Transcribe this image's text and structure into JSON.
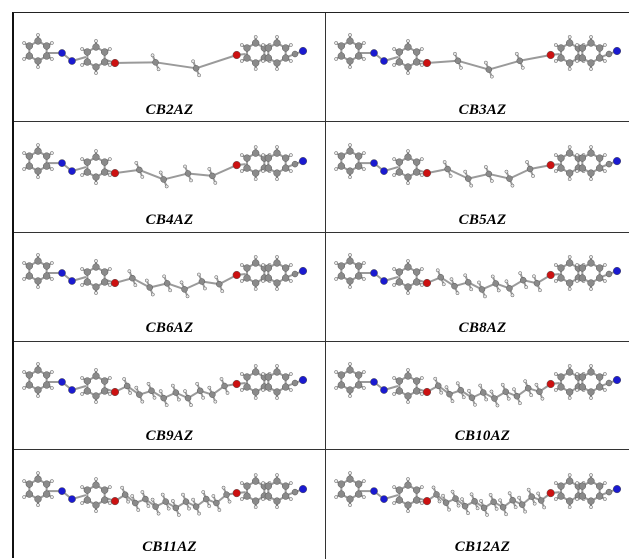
{
  "figure": {
    "molecules": [
      {
        "label": "CB2AZ",
        "spacer_units": 2
      },
      {
        "label": "CB3AZ",
        "spacer_units": 3
      },
      {
        "label": "CB4AZ",
        "spacer_units": 4
      },
      {
        "label": "CB5AZ",
        "spacer_units": 5
      },
      {
        "label": "CB6AZ",
        "spacer_units": 6
      },
      {
        "label": "CB8AZ",
        "spacer_units": 8
      },
      {
        "label": "CB9AZ",
        "spacer_units": 9
      },
      {
        "label": "CB10AZ",
        "spacer_units": 10
      },
      {
        "label": "CB11AZ",
        "spacer_units": 11
      },
      {
        "label": "CB12AZ",
        "spacer_units": 12
      }
    ]
  },
  "colors": {
    "carbon": "#8a8a8a",
    "hydrogen": "#e6e6e6",
    "nitrogen": "#1a1ad0",
    "oxygen": "#cc1111",
    "bond": "#9a9a9a",
    "grid_line": "#333333"
  }
}
